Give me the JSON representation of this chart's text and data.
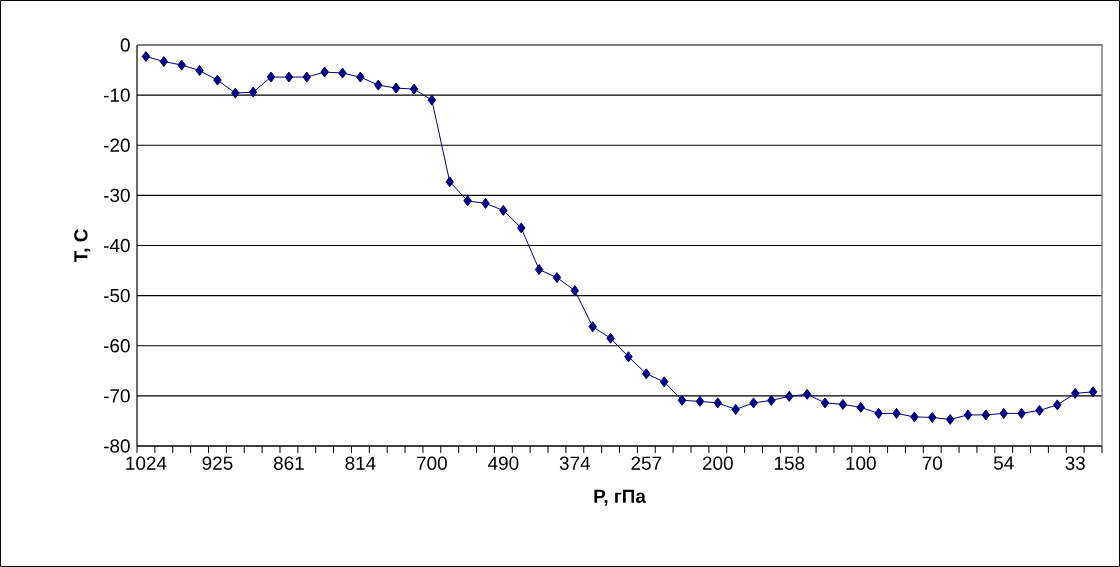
{
  "chart_data": {
    "type": "line",
    "xlabel": "P, гПа",
    "ylabel": "T, C",
    "categories": [
      "1024",
      null,
      null,
      null,
      "925",
      null,
      null,
      null,
      "861",
      null,
      null,
      null,
      "814",
      null,
      null,
      null,
      "700",
      null,
      null,
      null,
      "490",
      null,
      null,
      null,
      "374",
      null,
      null,
      null,
      "257",
      null,
      null,
      null,
      "200",
      null,
      null,
      null,
      "158",
      null,
      null,
      null,
      "100",
      null,
      null,
      null,
      "70",
      null,
      null,
      null,
      "54",
      null,
      null,
      null,
      "33",
      null
    ],
    "values": [
      -2.3,
      -3.3,
      -4.0,
      -5.1,
      -7.0,
      -9.6,
      -9.4,
      -6.4,
      -6.4,
      -6.4,
      -5.4,
      -5.6,
      -6.4,
      -8.0,
      -8.6,
      -8.8,
      -11.0,
      -27.3,
      -31.1,
      -31.6,
      -33.0,
      -36.5,
      -44.8,
      -46.4,
      -49.0,
      -56.2,
      -58.5,
      -62.2,
      -65.6,
      -67.2,
      -70.9,
      -71.1,
      -71.4,
      -72.7,
      -71.4,
      -70.9,
      -70.1,
      -69.7,
      -71.4,
      -71.7,
      -72.3,
      -73.5,
      -73.5,
      -74.2,
      -74.3,
      -74.7,
      -73.8,
      -73.8,
      -73.5,
      -73.5,
      -72.9,
      -71.8,
      -69.5,
      -69.2
    ],
    "color": "#000080",
    "ylim": [
      -80,
      0
    ],
    "yticks": [
      -80,
      -70,
      -60,
      -50,
      -40,
      -30,
      -20,
      -10,
      0
    ],
    "grid": "y",
    "marker": "diamond",
    "line_style": "solid"
  }
}
